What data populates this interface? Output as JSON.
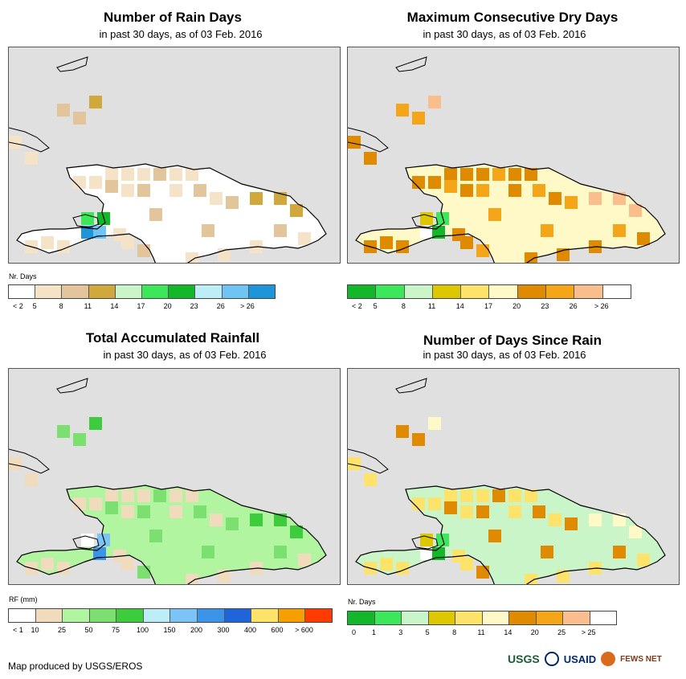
{
  "panels": [
    {
      "title": "Number of Rain Days",
      "subtitle": "in past 30 days, as of 03 Feb. 2016",
      "legend_label": "Nr. Days",
      "legend_colors": [
        "#ffffff",
        "#f5e3c8",
        "#e2c59a",
        "#d1a83c",
        "#c9f5c9",
        "#3ce85a",
        "#12b82a",
        "#bdeef7",
        "#6dc4f5",
        "#1f95d9"
      ],
      "legend_ticks": [
        "< 2",
        "5",
        "8",
        "11",
        "14",
        "17",
        "20",
        "23",
        "26",
        "> 26"
      ],
      "map_colors": {
        "base": "#ffffff",
        "c1": "#f5e3c8",
        "c2": "#e2c59a",
        "c3": "#d1a83c",
        "c4": "#3ce85a",
        "c5": "#12b82a",
        "c6": "#6dc4f5",
        "c7": "#1f95d9"
      }
    },
    {
      "title": "Maximum Consecutive Dry Days",
      "subtitle": "in past 30 days, as of 03 Feb. 2016",
      "legend_label": "",
      "legend_colors": [
        "#12b82a",
        "#3ce85a",
        "#c9f5c9",
        "#ddc800",
        "#fde36a",
        "#fff9c8",
        "#e08a00",
        "#f5a618",
        "#f9be8c",
        "#ffffff"
      ],
      "legend_ticks": [
        "< 2",
        "5",
        "8",
        "11",
        "14",
        "17",
        "20",
        "23",
        "26",
        "> 26"
      ],
      "map_colors": {
        "base": "#fff9c8",
        "c1": "#e08a00",
        "c2": "#f5a618",
        "c3": "#f9be8c",
        "c4": "#ddc800",
        "c5": "#3ce85a",
        "c6": "#12b82a",
        "c7": "#ffffff"
      }
    },
    {
      "title": "Total Accumulated Rainfall",
      "subtitle": "in past 30 days, as of 03 Feb. 2016",
      "legend_label": "RF (mm)",
      "legend_colors": [
        "#ffffff",
        "#f0dcbc",
        "#b2f5a0",
        "#7ce070",
        "#3ccc3c",
        "#bdeef7",
        "#7cc4f5",
        "#3c94e8",
        "#1f64d9",
        "#fde36a",
        "#f5a000",
        "#ff3c00"
      ],
      "legend_ticks": [
        "< 1",
        "10",
        "25",
        "50",
        "75",
        "100",
        "150",
        "200",
        "300",
        "400",
        "600",
        "> 600"
      ],
      "map_colors": {
        "base": "#b2f5a0",
        "c1": "#f0dcbc",
        "c2": "#7ce070",
        "c3": "#3ccc3c",
        "c4": "#ffffff",
        "c5": "#7cc4f5",
        "c6": "#3c94e8",
        "c7": "#b2f5a0"
      }
    },
    {
      "title": "Number of Days Since Rain",
      "subtitle": "in past 30 days, as of 03 Feb. 2016",
      "legend_label": "Nr. Days",
      "legend_colors": [
        "#12b82a",
        "#3ce85a",
        "#c9f5c9",
        "#ddc800",
        "#fde36a",
        "#fff9c8",
        "#e08a00",
        "#f5a618",
        "#f9be8c",
        "#ffffff"
      ],
      "legend_ticks": [
        "0",
        "1",
        "3",
        "5",
        "8",
        "11",
        "14",
        "20",
        "25",
        "> 25"
      ],
      "map_colors": {
        "base": "#c9f5c9",
        "c1": "#fde36a",
        "c2": "#e08a00",
        "c3": "#fff9c8",
        "c4": "#ddc800",
        "c5": "#3ce85a",
        "c6": "#12b82a",
        "c7": "#ffffff"
      }
    }
  ],
  "footer": "Map produced by USGS/EROS",
  "logos": {
    "usgs": "USGS",
    "usaid": "USAID",
    "fews": "FEWS NET"
  }
}
